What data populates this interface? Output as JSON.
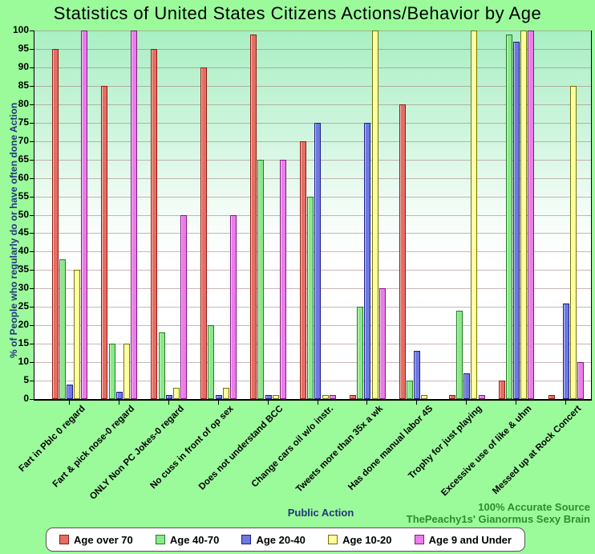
{
  "chart_data": {
    "type": "bar",
    "title": "Statistics of United States Citizens Actions/Behavior by Age",
    "xlabel": "Public Action",
    "ylabel": "% of People who regularly do or have often done Action",
    "ylim": [
      0,
      100
    ],
    "ytick_step": 5,
    "grid": true,
    "legend_position": "bottom",
    "categories": [
      "Fart in Pblc 0 regard",
      "Fart & pick nose-0 regard",
      "ONLY Non PC Jokes-0 regard",
      "No cuss in front of op sex",
      "Does not understand BCC",
      "Change cars oil w/o instr.",
      "Tweets more than 35x a wk",
      "Has done manual labor 4S",
      "Trophy for just playing",
      "Excessive use of like & uhm",
      "Messed up at Rock Concert"
    ],
    "series": [
      {
        "name": "Age over 70",
        "fill": "#E46E64",
        "border": "#8F1A10",
        "values": [
          95,
          85,
          95,
          90,
          99,
          70,
          1,
          80,
          1,
          5,
          1
        ]
      },
      {
        "name": "Age 40-70",
        "fill": "#8BE88B",
        "border": "#1E7D1E",
        "values": [
          38,
          15,
          18,
          20,
          65,
          55,
          25,
          5,
          24,
          99,
          0
        ]
      },
      {
        "name": "Age 20-40",
        "fill": "#6E79E0",
        "border": "#1C1C87",
        "values": [
          4,
          2,
          1,
          1,
          1,
          75,
          75,
          13,
          7,
          97,
          26
        ]
      },
      {
        "name": "Age 10-20",
        "fill": "#FFFF99",
        "border": "#72720A",
        "values": [
          35,
          15,
          3,
          3,
          1,
          1,
          100,
          1,
          100,
          100,
          85
        ]
      },
      {
        "name": "Age 9 and Under",
        "fill": "#EA7DEA",
        "border": "#801980",
        "values": [
          100,
          100,
          50,
          50,
          65,
          1,
          30,
          0,
          1,
          100,
          10
        ]
      }
    ],
    "source_line1": "100% Accurate Source",
    "source_line2": "ThePeachy1s' Gianormus Sexy Brain"
  },
  "colors": {
    "page_bg": "#9BFB9B",
    "axis_label_blue": "#26357E",
    "source_green": "#2E8B2E"
  }
}
